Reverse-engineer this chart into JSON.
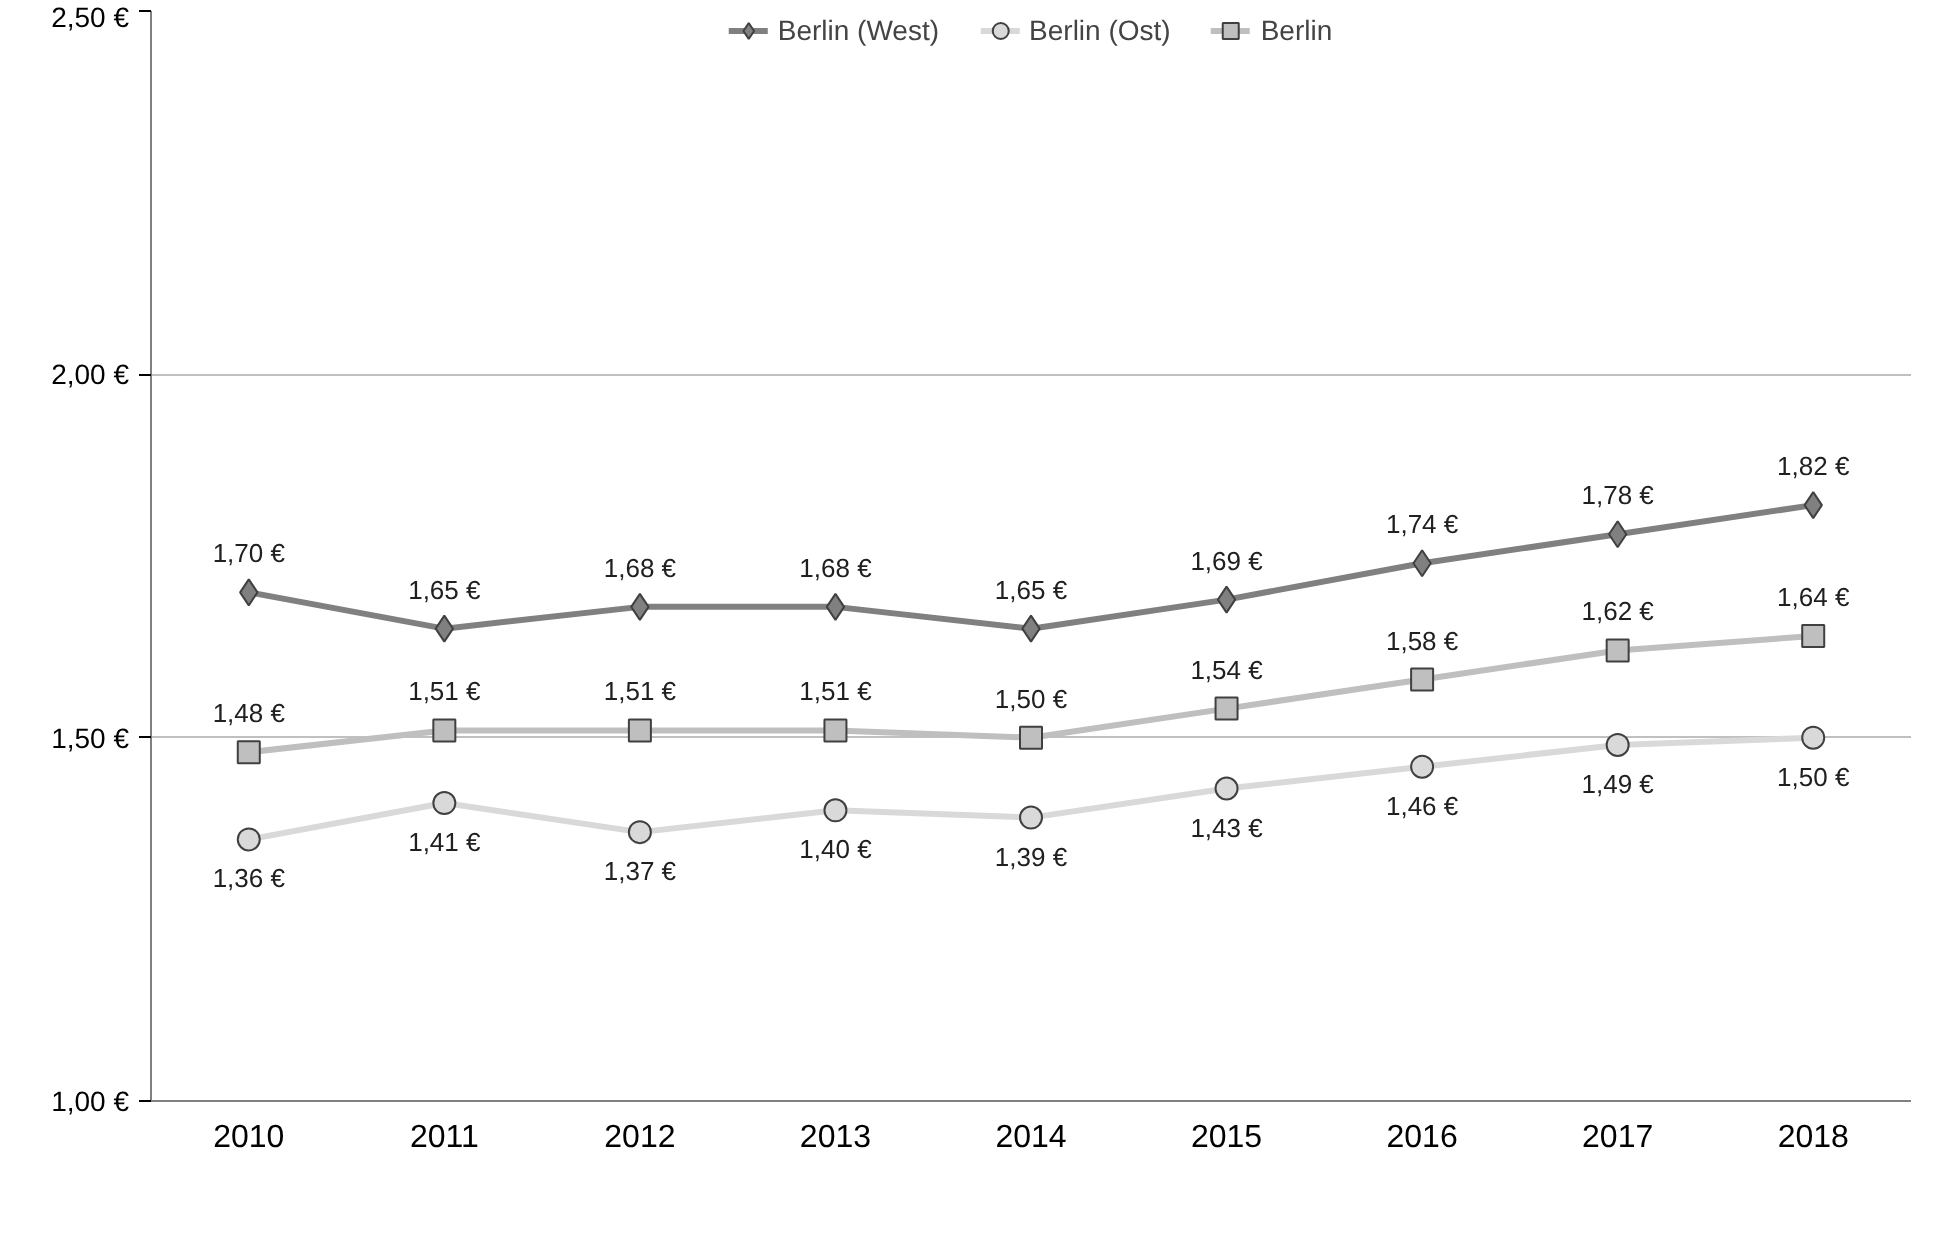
{
  "chart_data": {
    "type": "line",
    "categories": [
      "2010",
      "2011",
      "2012",
      "2013",
      "2014",
      "2015",
      "2016",
      "2017",
      "2018"
    ],
    "series": [
      {
        "name": "Berlin (West)",
        "color": "#808080",
        "marker": "diamond",
        "values": [
          1.7,
          1.65,
          1.68,
          1.68,
          1.65,
          1.69,
          1.74,
          1.78,
          1.82
        ],
        "value_labels": [
          "1,70 €",
          "1,65 €",
          "1,68 €",
          "1,68 €",
          "1,65 €",
          "1,69 €",
          "1,74 €",
          "1,78 €",
          "1,82 €"
        ]
      },
      {
        "name": "Berlin (Ost)",
        "color": "#d9d9d9",
        "marker": "circle",
        "values": [
          1.36,
          1.41,
          1.37,
          1.4,
          1.39,
          1.43,
          1.46,
          1.49,
          1.5
        ],
        "value_labels": [
          "1,36 €",
          "1,41 €",
          "1,37 €",
          "1,40 €",
          "1,39 €",
          "1,43 €",
          "1,46 €",
          "1,49 €",
          "1,50 €"
        ]
      },
      {
        "name": "Berlin",
        "color": "#bfbfbf",
        "marker": "square",
        "values": [
          1.48,
          1.51,
          1.51,
          1.51,
          1.5,
          1.54,
          1.58,
          1.62,
          1.64
        ],
        "value_labels": [
          "1,48 €",
          "1,51 €",
          "1,51 €",
          "1,51 €",
          "1,50 €",
          "1,54 €",
          "1,58 €",
          "1,62 €",
          "1,64 €"
        ]
      }
    ],
    "ylim": [
      1.0,
      2.5
    ],
    "yticks": [
      {
        "value": 1.0,
        "label": "1,00 €"
      },
      {
        "value": 1.5,
        "label": "1,50 €"
      },
      {
        "value": 2.0,
        "label": "2,00 €"
      },
      {
        "value": 2.5,
        "label": "2,50 €"
      }
    ],
    "grid": "y",
    "legend": "top",
    "line_style": "solid"
  }
}
